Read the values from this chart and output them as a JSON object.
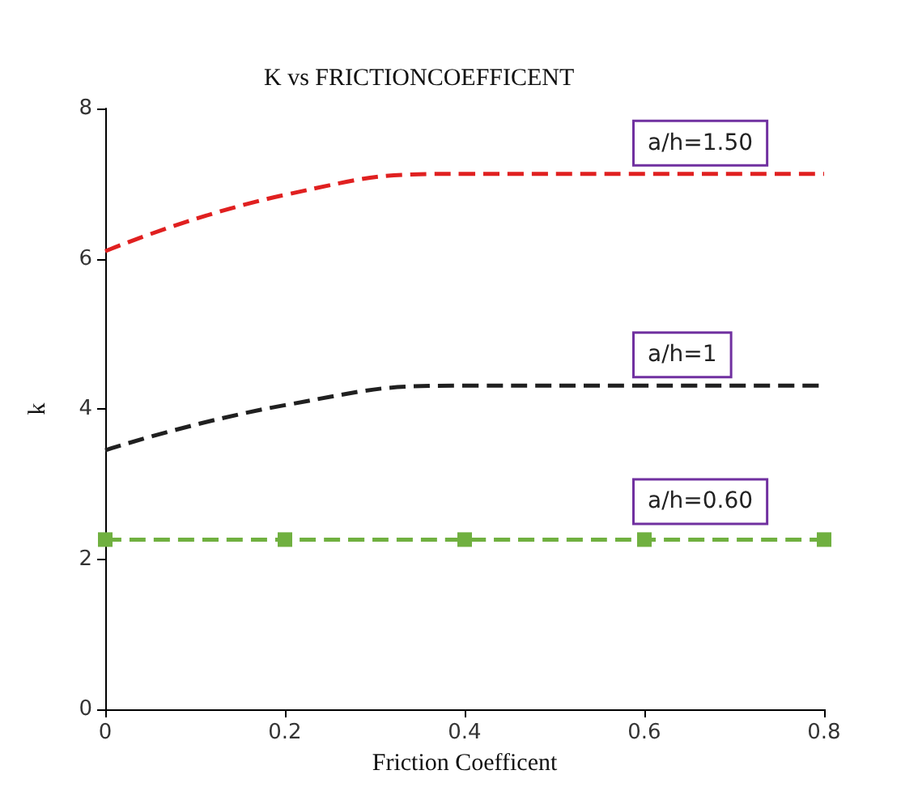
{
  "chart_data": {
    "type": "line",
    "title": "K vs FRICTIONCOEFFICENT",
    "xlabel": "Friction Coefficent",
    "ylabel": "k",
    "x": [
      0,
      0.2,
      0.4,
      0.6,
      0.8
    ],
    "series": [
      {
        "name": "a/h=1.50",
        "color": "#e02020",
        "values": [
          6.1,
          6.85,
          7.13,
          7.13,
          7.13
        ],
        "marker": "none"
      },
      {
        "name": "a/h=1",
        "color": "#202020",
        "values": [
          3.45,
          4.05,
          4.31,
          4.31,
          4.31
        ],
        "marker": "none"
      },
      {
        "name": "a/h=0.60",
        "color": "#70b040",
        "values": [
          2.26,
          2.26,
          2.26,
          2.26,
          2.26
        ],
        "marker": "square"
      }
    ],
    "xlim": [
      0,
      0.8
    ],
    "xticks": [
      0,
      0.2,
      0.4,
      0.6,
      0.8
    ],
    "ylim": [
      0,
      8
    ],
    "yticks": [
      0,
      2,
      4,
      6,
      8
    ],
    "grid": false,
    "line_style": "dashed"
  }
}
